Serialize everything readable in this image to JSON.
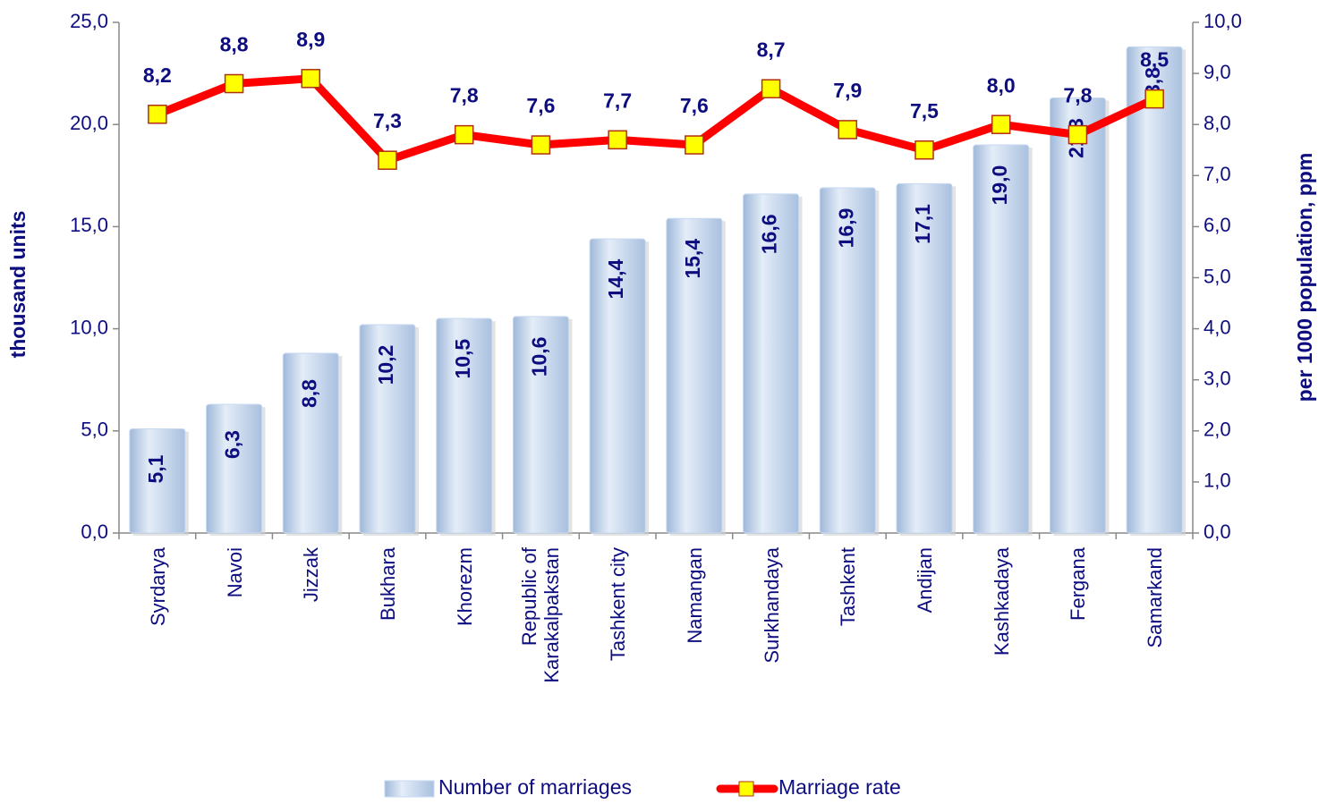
{
  "chart_data": {
    "type": "bar_line",
    "categories": [
      "Syrdarya",
      "Navoi",
      "Jizzak",
      "Bukhara",
      "Khorezm",
      "Republic of Karakalpakstan",
      "Tashkent city",
      "Namangan",
      "Surkhandaya",
      "Tashkent",
      "Andijan",
      "Kashkadaya",
      "Fergana",
      "Samarkand"
    ],
    "series": [
      {
        "name": "Number of marriages",
        "color": "#c6d9f1",
        "axis": "y",
        "values": [
          5.1,
          6.3,
          8.8,
          10.2,
          10.5,
          10.6,
          14.4,
          15.4,
          16.6,
          16.9,
          17.1,
          19.0,
          21.3,
          23.8
        ],
        "value_labels": [
          "5,1",
          "6,3",
          "8,8",
          "10,2",
          "10,5",
          "10,6",
          "14,4",
          "15,4",
          "16,6",
          "16,9",
          "17,1",
          "19,0",
          "21,3",
          "23,8"
        ]
      },
      {
        "name": "Marriage rate",
        "color": "#ff0000",
        "marker_color": "#ffff00",
        "axis": "y2",
        "values": [
          8.2,
          8.8,
          8.9,
          7.3,
          7.8,
          7.6,
          7.7,
          7.6,
          8.7,
          7.9,
          7.5,
          8.0,
          7.8,
          8.5
        ],
        "value_labels": [
          "8,2",
          "8,8",
          "8,9",
          "7,3",
          "7,8",
          "7,6",
          "7,7",
          "7,6",
          "8,7",
          "7,9",
          "7,5",
          "8,0",
          "7,8",
          "8,5"
        ]
      }
    ],
    "ylabel": "thousand units",
    "y2label": "per 1000 population, ppm",
    "ylim": [
      0,
      25
    ],
    "yticks": [
      {
        "value": 0,
        "label": "0,0"
      },
      {
        "value": 5,
        "label": "5,0"
      },
      {
        "value": 10,
        "label": "10,0"
      },
      {
        "value": 15,
        "label": "15,0"
      },
      {
        "value": 20,
        "label": "20,0"
      },
      {
        "value": 25,
        "label": "25,0"
      }
    ],
    "y2lim": [
      0,
      10
    ],
    "y2ticks": [
      {
        "value": 0,
        "label": "0,0"
      },
      {
        "value": 1,
        "label": "1,0"
      },
      {
        "value": 2,
        "label": "2,0"
      },
      {
        "value": 3,
        "label": "3,0"
      },
      {
        "value": 4,
        "label": "4,0"
      },
      {
        "value": 5,
        "label": "5,0"
      },
      {
        "value": 6,
        "label": "6,0"
      },
      {
        "value": 7,
        "label": "7,0"
      },
      {
        "value": 8,
        "label": "8,0"
      },
      {
        "value": 9,
        "label": "9,0"
      },
      {
        "value": 10,
        "label": "10,0"
      }
    ],
    "legend": "bottom",
    "grid": false
  }
}
